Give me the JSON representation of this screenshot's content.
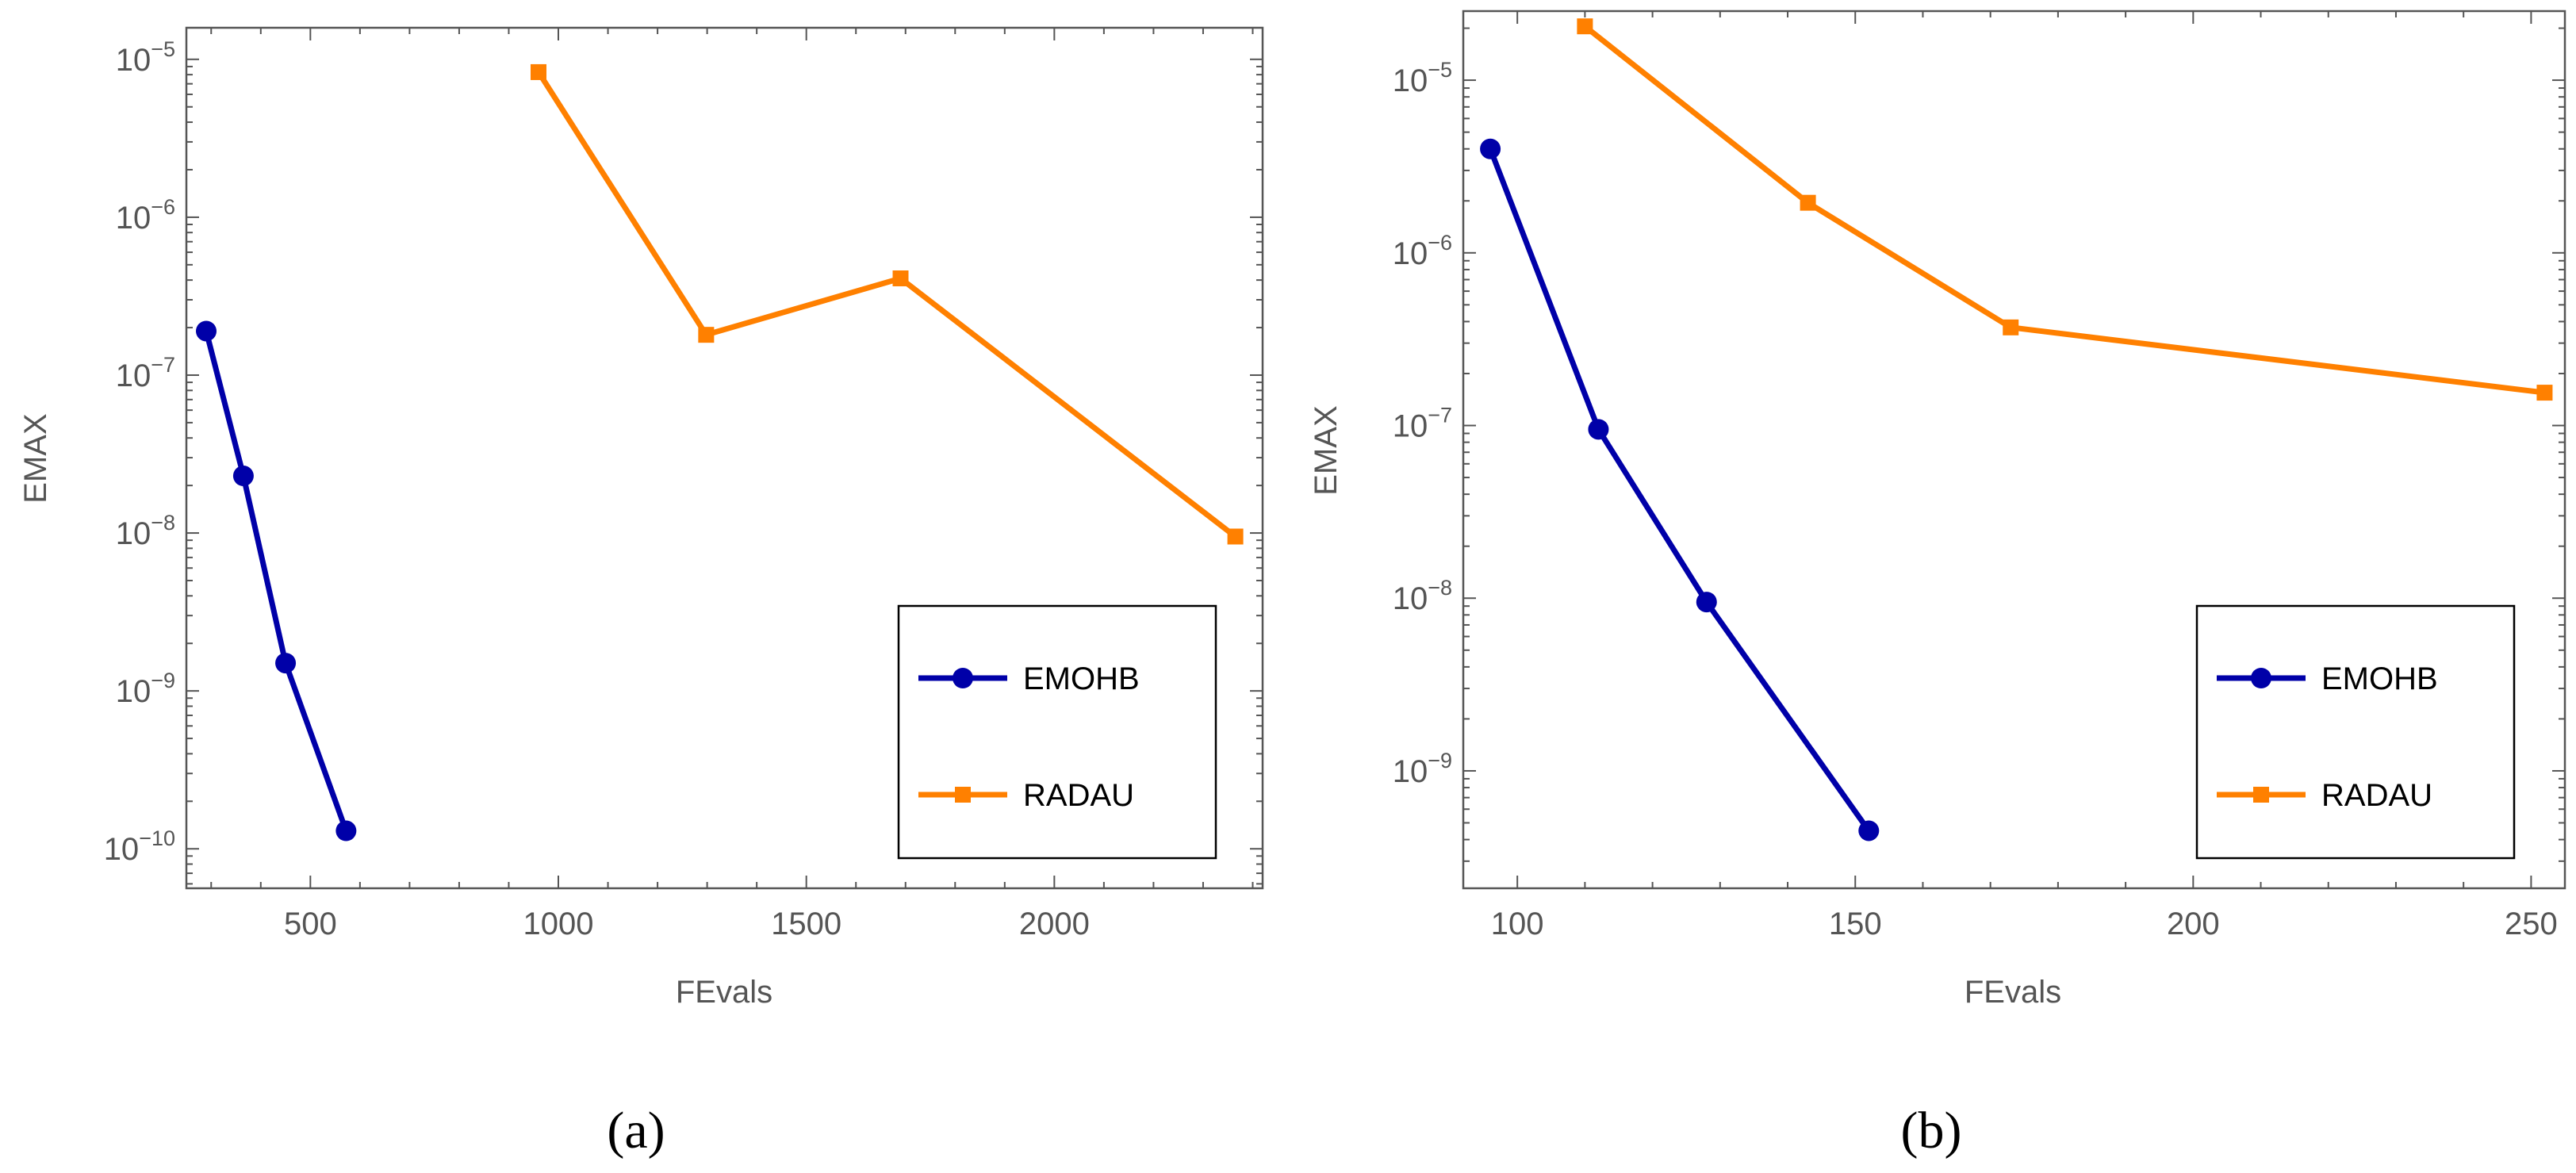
{
  "chart_data": [
    {
      "type": "line",
      "panel_label": "(a)",
      "xlabel": "FEvals",
      "ylabel": "EMAX",
      "yscale": "log",
      "xlim": [
        250,
        2420
      ],
      "ylim_exp": [
        -10.25,
        -4.8
      ],
      "xticks": [
        500,
        1000,
        1500,
        2000
      ],
      "yticks_exp": [
        -10,
        -9,
        -8,
        -7,
        -6,
        -5
      ],
      "legend_position": "bottom-right",
      "series": [
        {
          "name": "EMOHB",
          "color": "#0000a8",
          "marker": "circle",
          "x": [
            290,
            365,
            450,
            572
          ],
          "y": [
            1.9e-07,
            2.3e-08,
            1.5e-09,
            1.3e-10
          ]
        },
        {
          "name": "RADAU",
          "color": "#ff8000",
          "marker": "square",
          "x": [
            960,
            1298,
            1690,
            2365
          ],
          "y": [
            8.3e-06,
            1.8e-07,
            4.1e-07,
            9.5e-09
          ]
        }
      ]
    },
    {
      "type": "line",
      "panel_label": "(b)",
      "xlabel": "FEvals",
      "ylabel": "EMAX",
      "yscale": "log",
      "xlim": [
        92,
        255
      ],
      "ylim_exp": [
        -9.68,
        -4.6
      ],
      "xticks": [
        100,
        150,
        200,
        250
      ],
      "yticks_exp": [
        -9,
        -8,
        -7,
        -6,
        -5
      ],
      "legend_position": "bottom-right",
      "series": [
        {
          "name": "EMOHB",
          "color": "#0000a8",
          "marker": "circle",
          "x": [
            96,
            112,
            128,
            152
          ],
          "y": [
            4e-06,
            9.5e-08,
            9.5e-09,
            4.5e-10
          ]
        },
        {
          "name": "RADAU",
          "color": "#ff8000",
          "marker": "square",
          "x": [
            110,
            143,
            173,
            252
          ],
          "y": [
            2.05e-05,
            1.95e-06,
            3.7e-07,
            1.55e-07
          ]
        }
      ]
    }
  ]
}
